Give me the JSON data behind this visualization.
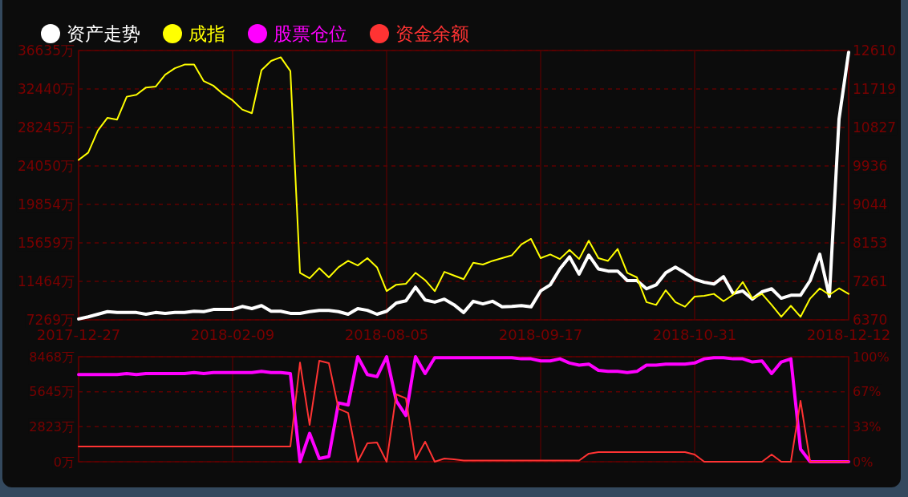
{
  "chart_data": [
    {
      "type": "line",
      "categories": [
        "2017-12-27",
        null,
        null,
        null,
        null,
        null,
        null,
        null,
        null,
        null,
        null,
        null,
        null,
        null,
        null,
        null,
        "2018-02-09",
        null,
        null,
        null,
        null,
        null,
        null,
        null,
        null,
        null,
        null,
        null,
        null,
        null,
        null,
        null,
        "2018-08-05",
        null,
        null,
        null,
        null,
        null,
        null,
        null,
        null,
        null,
        null,
        null,
        null,
        null,
        null,
        null,
        "2018-09-17",
        null,
        null,
        null,
        null,
        null,
        null,
        null,
        null,
        null,
        null,
        null,
        null,
        null,
        null,
        null,
        "2018-10-31",
        null,
        null,
        null,
        null,
        null,
        null,
        null,
        null,
        null,
        null,
        null,
        null,
        null,
        null,
        null,
        "2018-12-12"
      ],
      "series": [
        {
          "name": "资产走势",
          "color": "#ffffff",
          "axis": "y2",
          "values": [
            6390,
            6440,
            6500,
            6560,
            6540,
            6540,
            6540,
            6500,
            6540,
            6520,
            6540,
            6540,
            6570,
            6560,
            6610,
            6610,
            6610,
            6680,
            6630,
            6700,
            6570,
            6570,
            6520,
            6520,
            6560,
            6590,
            6590,
            6560,
            6500,
            6630,
            6590,
            6500,
            6570,
            6760,
            6810,
            7130,
            6830,
            6780,
            6850,
            6720,
            6540,
            6800,
            6740,
            6800,
            6670,
            6680,
            6700,
            6670,
            7040,
            7180,
            7550,
            7830,
            7430,
            7870,
            7550,
            7500,
            7500,
            7280,
            7280,
            7090,
            7180,
            7460,
            7590,
            7460,
            7310,
            7240,
            7200,
            7370,
            6980,
            7040,
            6850,
            7020,
            7090,
            6870,
            6940,
            6940,
            7280,
            7890,
            6910,
            11020,
            12570
          ]
        },
        {
          "name": "成指",
          "color": "#ffff00",
          "values": [
            24700,
            25500,
            27900,
            29300,
            29100,
            31600,
            31800,
            32600,
            32700,
            34000,
            34700,
            35100,
            35100,
            33300,
            32800,
            31900,
            31200,
            30200,
            29800,
            34500,
            35500,
            35900,
            34400,
            12400,
            11800,
            12900,
            11900,
            13000,
            13700,
            13200,
            14000,
            13000,
            10400,
            11100,
            11200,
            12400,
            11600,
            10400,
            12500,
            12100,
            11700,
            13500,
            13300,
            13700,
            14000,
            14300,
            15500,
            16100,
            14000,
            14400,
            13900,
            14900,
            13900,
            15900,
            14000,
            13700,
            15000,
            12400,
            11900,
            9200,
            8900,
            10500,
            9200,
            8700,
            9800,
            9900,
            10100,
            9300,
            10000,
            11400,
            9600,
            10100,
            8900,
            7600,
            8800,
            7600,
            9600,
            10700,
            10000,
            10700,
            10100
          ]
        }
      ],
      "ylim": [
        7269,
        36635
      ],
      "yticks": [
        {
          "value": 7269,
          "label": "7269万"
        },
        {
          "value": 11464,
          "label": "11464万"
        },
        {
          "value": 15659,
          "label": "15659万"
        },
        {
          "value": 19854,
          "label": "19854万"
        },
        {
          "value": 24050,
          "label": "24050万"
        },
        {
          "value": 28245,
          "label": "28245万"
        },
        {
          "value": 32440,
          "label": "32440万"
        },
        {
          "value": 36635,
          "label": "36635万"
        }
      ],
      "y2lim": [
        6370,
        12610
      ],
      "y2ticks": [
        6370,
        7261,
        8153,
        9044,
        9936,
        10827,
        11719,
        12610
      ],
      "grid": true,
      "legend": "top left",
      "line_style": "solid"
    },
    {
      "type": "line",
      "categories": [
        "2017-12-27",
        null,
        null,
        null,
        null,
        null,
        null,
        null,
        null,
        null,
        null,
        null,
        null,
        null,
        null,
        null,
        "2018-02-09",
        null,
        null,
        null,
        null,
        null,
        null,
        null,
        null,
        null,
        null,
        null,
        null,
        null,
        null,
        null,
        "2018-08-05",
        null,
        null,
        null,
        null,
        null,
        null,
        null,
        null,
        null,
        null,
        null,
        null,
        null,
        null,
        null,
        "2018-09-17",
        null,
        null,
        null,
        null,
        null,
        null,
        null,
        null,
        null,
        null,
        null,
        null,
        null,
        null,
        null,
        "2018-10-31",
        null,
        null,
        null,
        null,
        null,
        null,
        null,
        null,
        null,
        null,
        null,
        null,
        null,
        null,
        null,
        "2018-12-12"
      ],
      "series": [
        {
          "name": "股票仓位",
          "color": "#ff00ff",
          "axis": "y2",
          "values": [
            83,
            83,
            83,
            83,
            83,
            84,
            83,
            84,
            84,
            84,
            84,
            84,
            85,
            84,
            85,
            85,
            85,
            85,
            85,
            86,
            85,
            85,
            84,
            0,
            27,
            3,
            5,
            56,
            54,
            100,
            83,
            81,
            100,
            58,
            44,
            100,
            84,
            99,
            99,
            99,
            99,
            99,
            99,
            99,
            99,
            99,
            98,
            98,
            96,
            96,
            98,
            94,
            92,
            93,
            87,
            86,
            86,
            85,
            86,
            92,
            92,
            93,
            93,
            93,
            94,
            98,
            99,
            99,
            98,
            98,
            95,
            96,
            84,
            95,
            98,
            12,
            0,
            0,
            0,
            0,
            0
          ]
        },
        {
          "name": "资金余额",
          "color": "#ff3333",
          "values": [
            1230,
            1230,
            1230,
            1230,
            1230,
            1230,
            1230,
            1230,
            1230,
            1230,
            1230,
            1230,
            1230,
            1230,
            1230,
            1230,
            1230,
            1230,
            1230,
            1230,
            1230,
            1230,
            1230,
            8000,
            2970,
            8140,
            7950,
            4270,
            3940,
            0,
            1490,
            1550,
            0,
            5430,
            5110,
            190,
            1620,
            0,
            260,
            190,
            100,
            100,
            100,
            100,
            100,
            100,
            100,
            100,
            100,
            100,
            100,
            100,
            100,
            650,
            780,
            780,
            780,
            780,
            780,
            780,
            780,
            780,
            780,
            780,
            580,
            0,
            0,
            0,
            0,
            0,
            0,
            0,
            580,
            0,
            0,
            4910,
            0,
            0,
            0,
            0,
            0
          ]
        }
      ],
      "ylim": [
        0,
        8468
      ],
      "yticks": [
        {
          "value": 0,
          "label": "0万"
        },
        {
          "value": 2823,
          "label": "2823万"
        },
        {
          "value": 5645,
          "label": "5645万"
        },
        {
          "value": 8468,
          "label": "8468万"
        }
      ],
      "y2lim": [
        0,
        100
      ],
      "y2ticks": [
        {
          "value": 0,
          "label": "0%"
        },
        {
          "value": 33.33,
          "label": "33%"
        },
        {
          "value": 66.67,
          "label": "67%"
        },
        {
          "value": 100,
          "label": "100%"
        }
      ],
      "grid": true,
      "legend": "top left",
      "line_style": "solid",
      "tick_labels": "y"
    }
  ]
}
